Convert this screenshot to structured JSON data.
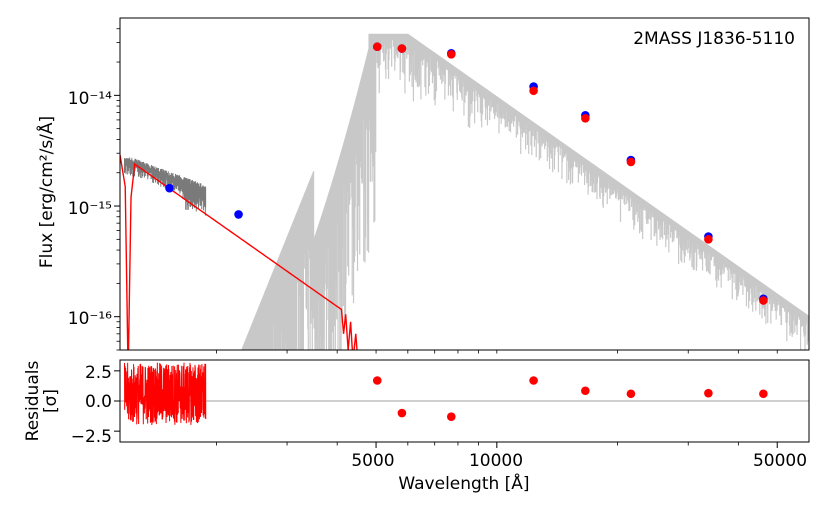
{
  "chart_data": [
    {
      "type": "scatter",
      "panel": "sed",
      "title": "2MASS J1836-5110",
      "xlabel": "Wavelength [Å]",
      "ylabel": "Flux [erg/cm²/s/Å]",
      "xscale": "log",
      "yscale": "log",
      "xlim": [
        1150,
        60000
      ],
      "ylim": [
        5e-17,
        5e-14
      ],
      "ytick_labels": [
        "10⁻¹⁶",
        "10⁻¹⁵",
        "10⁻¹⁴"
      ],
      "ytick_values": [
        1e-16,
        1e-15,
        1e-14
      ],
      "colors": {
        "observed": "#0000ff",
        "model_photometry": "#ff0000",
        "model_spectrum": "#c8c8c8",
        "uv_spectrum": "#7a7a7a",
        "uv_model": "#ff0000"
      },
      "series": [
        {
          "name": "observed photometry",
          "x": [
            1528,
            2271,
            5035,
            5800,
            7700,
            12350,
            16620,
            21590,
            33680,
            46180
          ],
          "y": [
            1.45e-15,
            8.4e-16,
            2.75e-14,
            2.65e-14,
            2.4e-14,
            1.2e-14,
            6.6e-15,
            2.6e-15,
            5.3e-16,
            1.45e-16
          ]
        },
        {
          "name": "model photometry",
          "x": [
            5035,
            5800,
            7700,
            12350,
            16620,
            21590,
            33680,
            46180
          ],
          "y": [
            2.75e-14,
            2.65e-14,
            2.35e-14,
            1.1e-14,
            6.2e-15,
            2.5e-15,
            5e-16,
            1.4e-16
          ]
        }
      ]
    },
    {
      "type": "scatter",
      "panel": "residuals",
      "xlabel": "Wavelength [Å]",
      "ylabel_line1": "Residuals",
      "ylabel_line2": "[σ]",
      "xscale": "log",
      "xlim": [
        1150,
        60000
      ],
      "ylim": [
        -3.4,
        3.4
      ],
      "ytick_labels": [
        "2.5",
        "0.0",
        "−2.5"
      ],
      "ytick_values": [
        2.5,
        0.0,
        -2.5
      ],
      "xtick_labels": [
        "5000",
        "10000",
        "50000"
      ],
      "xtick_values": [
        5000,
        10000,
        50000
      ],
      "series": [
        {
          "name": "residuals",
          "x": [
            5035,
            5800,
            7700,
            12350,
            16620,
            21590,
            33680,
            46180
          ],
          "y": [
            1.7,
            -1.0,
            -1.3,
            1.7,
            0.85,
            0.6,
            0.65,
            0.6
          ]
        }
      ]
    }
  ]
}
